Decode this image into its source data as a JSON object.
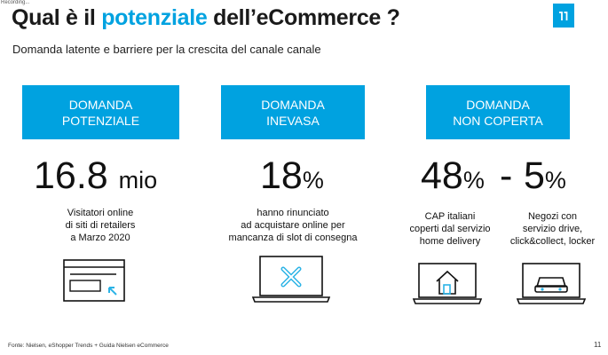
{
  "recording_tag": "Recording...",
  "title": {
    "prefix": "Qual è il ",
    "highlight": "potenziale",
    "suffix": " dell’eCommerce ?"
  },
  "subtitle": "Domanda latente e barriere per la crescita del canale canale",
  "colors": {
    "accent": "#00a2e0",
    "text": "#1a1a1a",
    "icon_accent": "#2bb3e6"
  },
  "columns": [
    {
      "header_line1": "DOMANDA",
      "header_line2": "POTENZIALE",
      "value": "16.8",
      "unit": "mio",
      "description": [
        "Visitatori online",
        "di siti di retailers",
        "a Marzo 2020"
      ],
      "icon": "browser-window-cursor-icon"
    },
    {
      "header_line1": "DOMANDA",
      "header_line2": "INEVASA",
      "value": "18",
      "unit": "%",
      "description": [
        "hanno rinunciato",
        "ad acquistare online per",
        "mancanza di slot di consegna"
      ],
      "icon": "laptop-error-x-icon"
    },
    {
      "header_line1": "DOMANDA",
      "header_line2": "NON COPERTA"
    }
  ],
  "non_coperta": {
    "left": {
      "value": "48",
      "unit": "%",
      "description": [
        "CAP italiani",
        "coperti dal servizio",
        "home delivery"
      ],
      "icon": "laptop-house-icon"
    },
    "separator": "-",
    "right": {
      "value": "5",
      "unit": "%",
      "description": [
        "Negozi con",
        "servizio drive,",
        "click&collect, locker"
      ],
      "icon": "laptop-car-icon"
    }
  },
  "footer": "Fonte: Nielsen, eShopper Trends + Guida Nielsen eCommerce",
  "page_number": "11"
}
